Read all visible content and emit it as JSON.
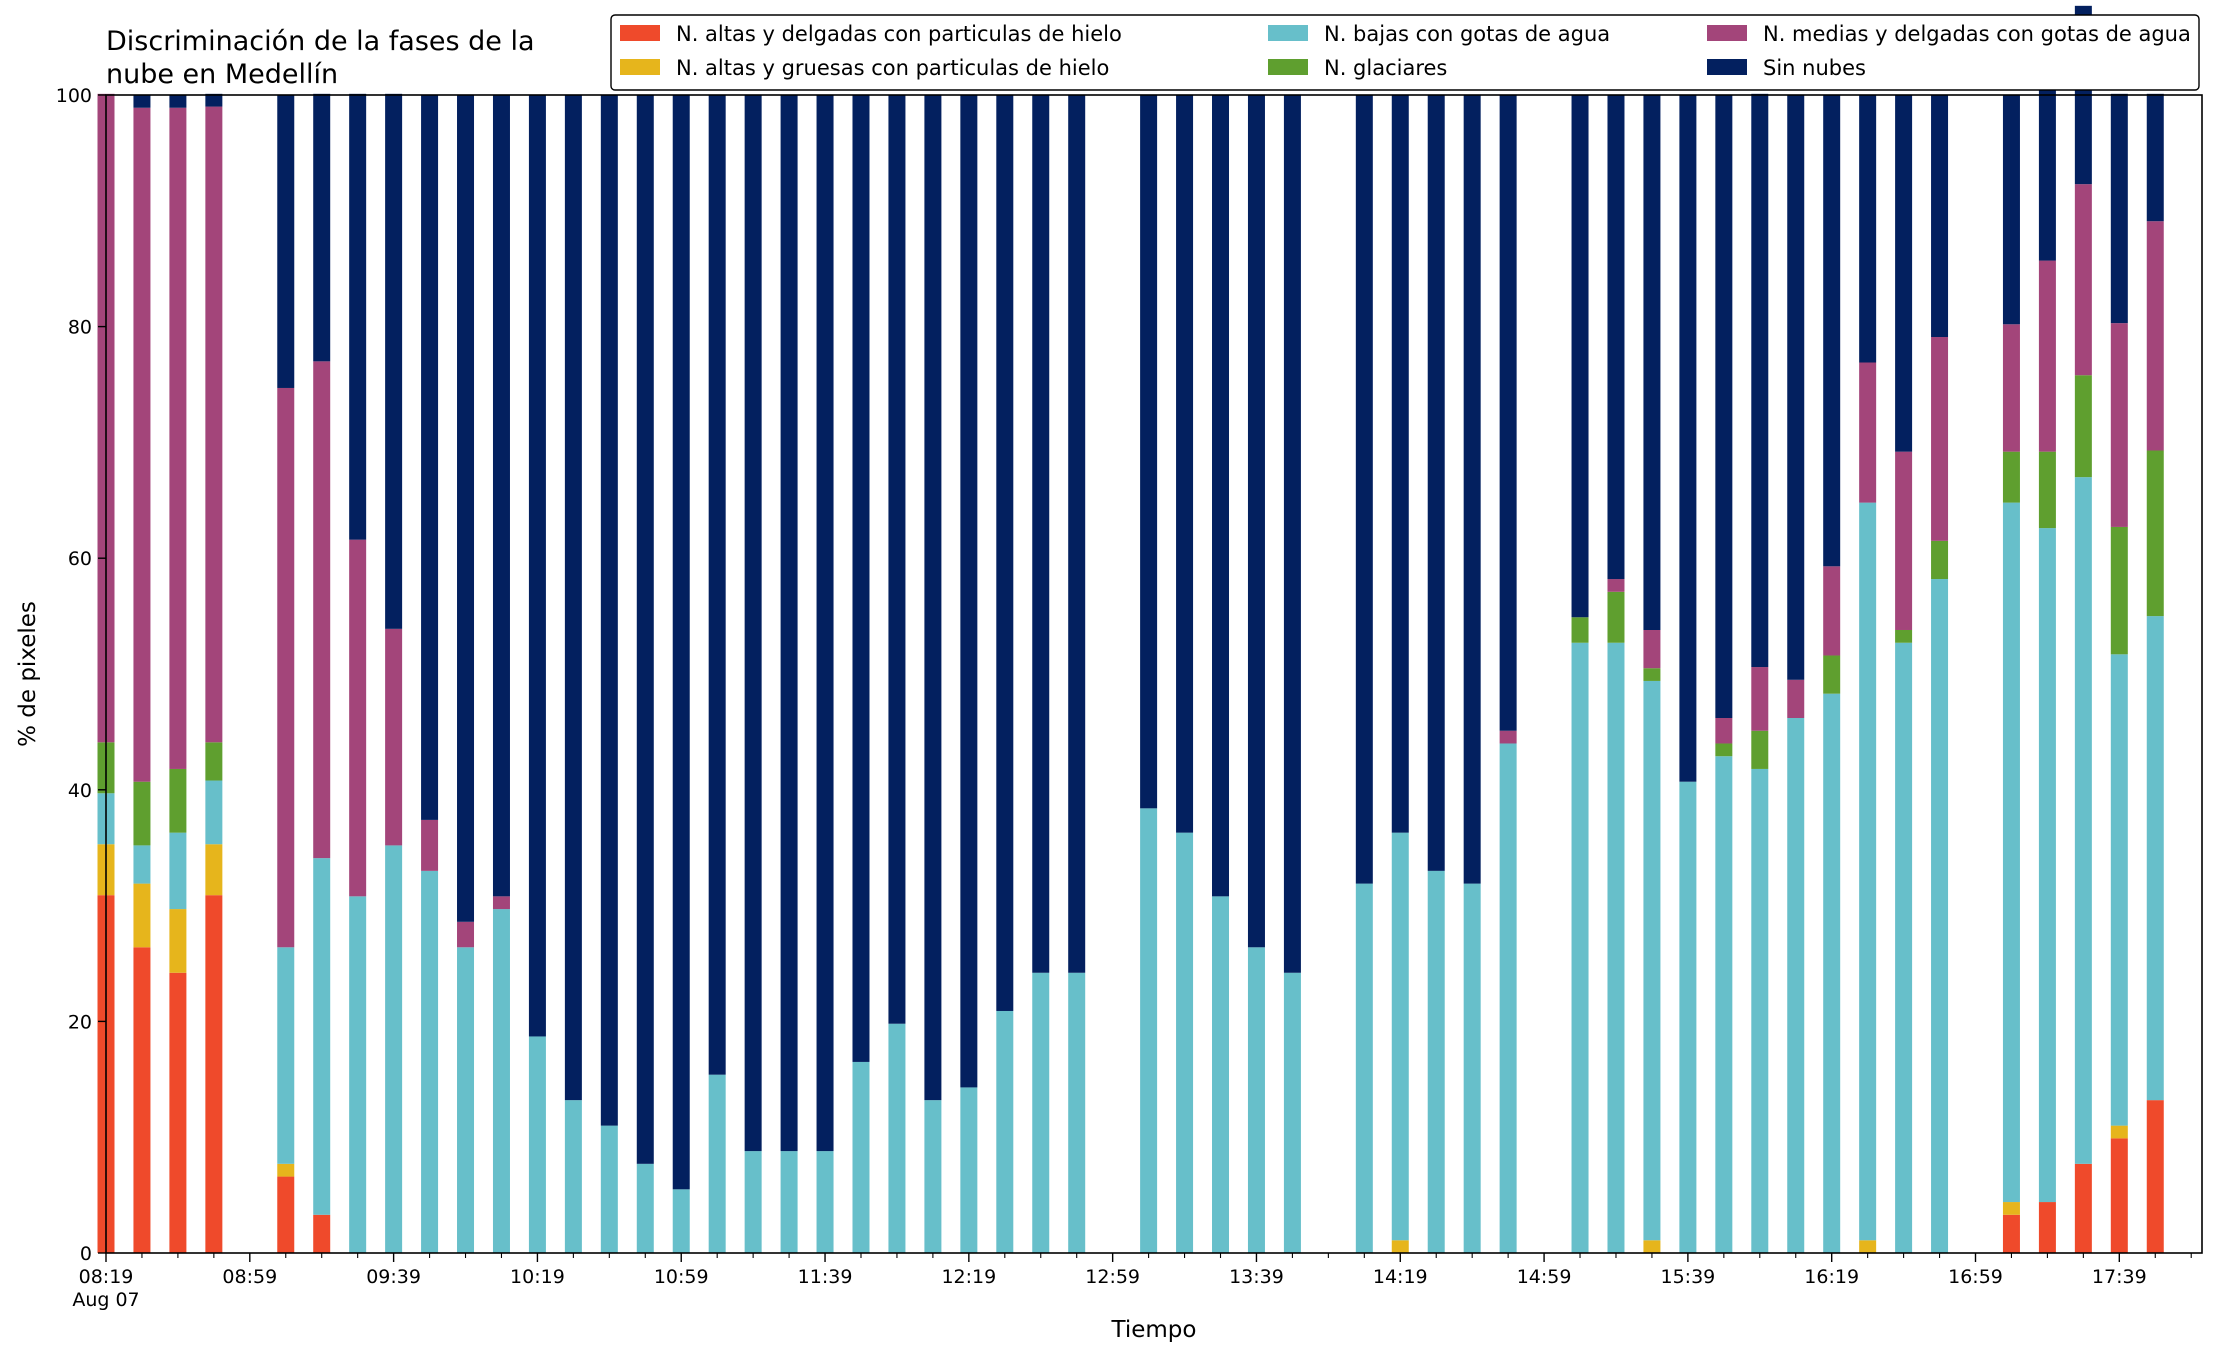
{
  "chart_data": {
    "type": "bar",
    "stacked": true,
    "title_lines": [
      "Discriminación de la fases de la",
      "nube en Medellín"
    ],
    "xlabel": "Tiempo",
    "ylabel": "% de pixeles",
    "ylim": [
      0,
      100
    ],
    "yticks": [
      0,
      20,
      40,
      60,
      80,
      100
    ],
    "x_tick_labels": [
      {
        "label": "08:19",
        "sublabel": "Aug 07",
        "time": "08:19"
      },
      {
        "label": "08:59",
        "time": "08:59"
      },
      {
        "label": "09:39",
        "time": "09:39"
      },
      {
        "label": "10:19",
        "time": "10:19"
      },
      {
        "label": "10:59",
        "time": "10:59"
      },
      {
        "label": "11:39",
        "time": "11:39"
      },
      {
        "label": "12:19",
        "time": "12:19"
      },
      {
        "label": "12:59",
        "time": "12:59"
      },
      {
        "label": "13:39",
        "time": "13:39"
      },
      {
        "label": "14:19",
        "time": "14:19"
      },
      {
        "label": "14:59",
        "time": "14:59"
      },
      {
        "label": "15:39",
        "time": "15:39"
      },
      {
        "label": "16:19",
        "time": "16:19"
      },
      {
        "label": "16:59",
        "time": "16:59"
      },
      {
        "label": "17:39",
        "time": "17:39"
      }
    ],
    "x_start": "08:19",
    "x_end": "18:02",
    "legend_position": "top",
    "categories": [
      "08:19",
      "08:29",
      "08:39",
      "08:49",
      "09:09",
      "09:19",
      "09:29",
      "09:39",
      "09:49",
      "09:59",
      "10:09",
      "10:19",
      "10:29",
      "10:39",
      "10:49",
      "10:59",
      "11:09",
      "11:19",
      "11:29",
      "11:39",
      "11:49",
      "11:59",
      "12:09",
      "12:19",
      "12:29",
      "12:39",
      "12:49",
      "13:09",
      "13:19",
      "13:29",
      "13:39",
      "13:49",
      "14:09",
      "14:19",
      "14:29",
      "14:39",
      "14:49",
      "15:09",
      "15:19",
      "15:29",
      "15:39",
      "15:49",
      "15:59",
      "16:09",
      "16:19",
      "16:29",
      "16:39",
      "16:49",
      "17:09",
      "17:19",
      "17:29",
      "17:39",
      "17:49"
    ],
    "series": [
      {
        "name": "N. altas y delgadas con particulas de hielo",
        "color": "#ef4a2b",
        "values": [
          30.9,
          26.4,
          24.2,
          30.9,
          6.6,
          3.3,
          0,
          0,
          0,
          0,
          0,
          0,
          0,
          0,
          0,
          0,
          0,
          0,
          0,
          0,
          0,
          0,
          0,
          0,
          0,
          0,
          0,
          0,
          0,
          0,
          0,
          0,
          0,
          0,
          0,
          0,
          0,
          0,
          0,
          0,
          0,
          0,
          0,
          0,
          0,
          0,
          0,
          0,
          3.3,
          4.4,
          7.7,
          9.9,
          13.2
        ]
      },
      {
        "name": "N. altas y gruesas con particulas de hielo",
        "color": "#e6b51c",
        "values": [
          4.4,
          5.5,
          5.5,
          4.4,
          1.1,
          0,
          0,
          0,
          0,
          0,
          0,
          0,
          0,
          0,
          0,
          0,
          0,
          0,
          0,
          0,
          0,
          0,
          0,
          0,
          0,
          0,
          0,
          0,
          0,
          0,
          0,
          0,
          0,
          1.1,
          0,
          0,
          0,
          0,
          0,
          1.1,
          0,
          0,
          0,
          0,
          0,
          1.1,
          0,
          0,
          1.1,
          0,
          0,
          1.1,
          0
        ]
      },
      {
        "name": "N. bajas con gotas de agua",
        "color": "#67bfca",
        "values": [
          4.4,
          3.3,
          6.6,
          5.5,
          18.7,
          30.8,
          30.8,
          35.2,
          33.0,
          26.4,
          29.7,
          18.7,
          13.2,
          11.0,
          7.7,
          5.5,
          15.4,
          8.8,
          8.8,
          8.8,
          16.5,
          19.8,
          13.2,
          14.3,
          20.9,
          24.2,
          24.2,
          38.4,
          36.3,
          30.8,
          26.4,
          24.2,
          31.9,
          35.2,
          33.0,
          31.9,
          44.0,
          52.7,
          52.7,
          48.3,
          40.7,
          42.9,
          41.8,
          46.2,
          48.3,
          63.7,
          52.7,
          58.2,
          60.4,
          58.2,
          59.3,
          40.7,
          41.8
        ]
      },
      {
        "name": "N. glaciares",
        "color": "#5f9f2f",
        "values": [
          4.4,
          5.5,
          5.5,
          3.3,
          0,
          0,
          0,
          0,
          0,
          0,
          0,
          0,
          0,
          0,
          0,
          0,
          0,
          0,
          0,
          0,
          0,
          0,
          0,
          0,
          0,
          0,
          0,
          0,
          0,
          0,
          0,
          0,
          0,
          0,
          0,
          0,
          0,
          2.2,
          4.4,
          1.1,
          0,
          1.1,
          3.3,
          0,
          3.3,
          0,
          1.1,
          3.3,
          4.4,
          6.6,
          8.8,
          11.0,
          14.3
        ]
      },
      {
        "name": "N. medias y delgadas con gotas de agua",
        "color": "#a3457a",
        "values": [
          56.0,
          58.2,
          57.1,
          54.9,
          48.3,
          42.9,
          30.8,
          18.7,
          4.4,
          2.2,
          1.1,
          0,
          0,
          0,
          0,
          0,
          0,
          0,
          0,
          0,
          0,
          0,
          0,
          0,
          0,
          0,
          0,
          0,
          0,
          0,
          0,
          0,
          0,
          0,
          0,
          0,
          1.1,
          0,
          1.1,
          3.3,
          0,
          2.2,
          5.5,
          3.3,
          7.7,
          12.1,
          15.4,
          17.6,
          11.0,
          16.5,
          16.5,
          17.6,
          19.8
        ]
      },
      {
        "name": "Sin nubes",
        "color": "#03205f",
        "values": [
          0,
          1.1,
          1.1,
          1.1,
          25.3,
          23.1,
          38.5,
          46.2,
          62.6,
          71.4,
          69.2,
          81.3,
          86.8,
          89.0,
          92.3,
          94.5,
          84.6,
          91.2,
          91.2,
          91.2,
          83.5,
          80.2,
          86.8,
          85.7,
          79.1,
          75.8,
          75.8,
          61.6,
          63.7,
          69.2,
          73.6,
          75.8,
          68.1,
          63.7,
          67.0,
          68.1,
          54.9,
          45.1,
          41.8,
          46.2,
          59.3,
          53.8,
          49.5,
          50.5,
          40.7,
          23.1,
          30.8,
          20.9,
          19.8,
          18.7,
          15.4,
          19.8,
          11.0
        ]
      }
    ]
  }
}
